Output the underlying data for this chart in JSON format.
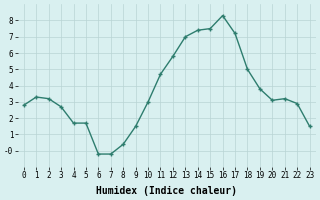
{
  "x": [
    0,
    1,
    2,
    3,
    4,
    5,
    6,
    7,
    8,
    9,
    10,
    11,
    12,
    13,
    14,
    15,
    16,
    17,
    18,
    19,
    20,
    21,
    22,
    23
  ],
  "y": [
    2.8,
    3.3,
    3.2,
    2.7,
    1.7,
    1.7,
    -0.2,
    -0.2,
    0.4,
    1.5,
    3.0,
    4.7,
    5.8,
    7.0,
    7.4,
    7.5,
    8.3,
    7.2,
    5.0,
    3.8,
    3.1,
    3.2,
    2.9,
    1.5
  ],
  "line_color": "#2e7d6e",
  "marker": "+",
  "marker_size": 3,
  "linewidth": 1.0,
  "bg_color": "#d9f0f0",
  "grid_color": "#b8d4d4",
  "xlabel": "Humidex (Indice chaleur)",
  "xlabel_fontsize": 7,
  "xlabel_fontweight": "bold",
  "ylim": [
    -1,
    9
  ],
  "xlim": [
    -0.5,
    23.5
  ],
  "yticks": [
    0,
    1,
    2,
    3,
    4,
    5,
    6,
    7,
    8
  ],
  "ytick_labels": [
    "-0",
    "1",
    "2",
    "3",
    "4",
    "5",
    "6",
    "7",
    "8"
  ],
  "xticks": [
    0,
    1,
    2,
    3,
    4,
    5,
    6,
    7,
    8,
    9,
    10,
    11,
    12,
    13,
    14,
    15,
    16,
    17,
    18,
    19,
    20,
    21,
    22,
    23
  ],
  "xtick_labels": [
    "0",
    "1",
    "2",
    "3",
    "4",
    "5",
    "6",
    "7",
    "8",
    "9",
    "10",
    "11",
    "12",
    "13",
    "14",
    "15",
    "16",
    "17",
    "18",
    "19",
    "20",
    "21",
    "22",
    "23"
  ],
  "tick_fontsize": 5.5,
  "title": ""
}
